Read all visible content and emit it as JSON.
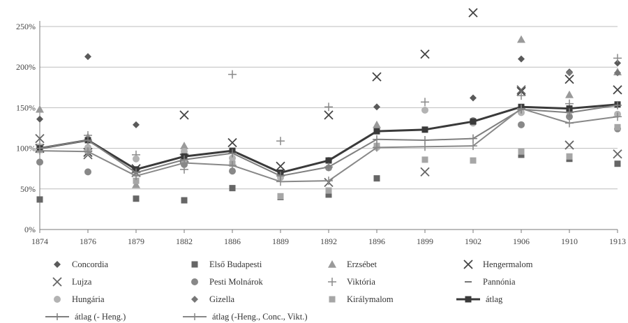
{
  "chart_data": {
    "type": "line",
    "x": [
      "1874",
      "1876",
      "1879",
      "1882",
      "1886",
      "1889",
      "1892",
      "1896",
      "1899",
      "1902",
      "1906",
      "1910",
      "1913"
    ],
    "ylim": [
      0,
      2.5
    ],
    "yticks": [
      "0%",
      "50%",
      "100%",
      "150%",
      "200%",
      "250%"
    ],
    "grid": true,
    "legend_position": "bottom",
    "series": [
      {
        "name": "Concordia",
        "kind": "marker",
        "marker": "diamond",
        "color": "#5a5a5a",
        "values": [
          1.36,
          2.13,
          1.29,
          null,
          null,
          null,
          null,
          1.51,
          null,
          1.62,
          2.1,
          1.94,
          2.05
        ]
      },
      {
        "name": "Első Budapesti",
        "kind": "marker",
        "marker": "square",
        "color": "#666666",
        "values": [
          0.37,
          null,
          0.38,
          0.36,
          0.51,
          0.4,
          0.43,
          0.63,
          null,
          null,
          0.92,
          0.87,
          0.81
        ]
      },
      {
        "name": "Erzsébet",
        "kind": "marker",
        "marker": "triangle",
        "color": "#9a9a9a",
        "values": [
          1.48,
          1.14,
          0.55,
          1.03,
          null,
          null,
          null,
          1.29,
          null,
          null,
          2.34,
          1.66,
          1.94
        ]
      },
      {
        "name": "Hengermalom",
        "kind": "marker",
        "marker": "x",
        "color": "#444444",
        "values": [
          1.0,
          0.95,
          0.75,
          1.41,
          1.07,
          0.78,
          1.41,
          1.88,
          2.16,
          2.67,
          1.7,
          1.85,
          1.72
        ]
      },
      {
        "name": "Lujza",
        "kind": "marker",
        "marker": "x",
        "color": "#666666",
        "values": [
          1.12,
          0.92,
          0.7,
          0.88,
          null,
          null,
          0.58,
          null,
          0.71,
          null,
          1.72,
          1.04,
          0.93
        ]
      },
      {
        "name": "Pesti Molnárok",
        "kind": "marker",
        "marker": "circle",
        "color": "#888888",
        "values": [
          0.83,
          0.71,
          null,
          0.8,
          0.72,
          null,
          0.76,
          null,
          null,
          1.34,
          1.29,
          1.39,
          1.24
        ]
      },
      {
        "name": "Viktória",
        "kind": "marker",
        "marker": "plus",
        "color": "#8a8a8a",
        "values": [
          1.05,
          1.16,
          0.92,
          0.74,
          1.91,
          1.09,
          1.51,
          null,
          1.57,
          null,
          1.65,
          1.55,
          2.11
        ]
      },
      {
        "name": "Pannónia",
        "kind": "marker",
        "marker": "dash",
        "color": "#666666",
        "values": [
          null,
          null,
          null,
          null,
          null,
          null,
          null,
          null,
          null,
          null,
          null,
          null,
          null
        ]
      },
      {
        "name": "Hungária",
        "kind": "marker",
        "marker": "circle",
        "color": "#b3b3b3",
        "values": [
          1.02,
          1.01,
          0.87,
          0.96,
          0.88,
          0.64,
          0.85,
          1.01,
          1.47,
          1.31,
          1.44,
          1.46,
          1.42
        ]
      },
      {
        "name": "Gizella",
        "kind": "marker",
        "marker": "diamond",
        "color": "#777777",
        "values": [
          null,
          null,
          null,
          null,
          null,
          null,
          null,
          null,
          null,
          null,
          null,
          1.93,
          1.93
        ]
      },
      {
        "name": "Királymalom",
        "kind": "marker",
        "marker": "square",
        "color": "#a6a6a6",
        "values": [
          0.98,
          0.97,
          0.6,
          0.86,
          0.81,
          0.41,
          0.48,
          1.03,
          0.86,
          0.85,
          0.96,
          0.9,
          1.26
        ]
      },
      {
        "name": "átlag",
        "kind": "line",
        "marker": "square",
        "color": "#3a3a3a",
        "width": 3,
        "values": [
          1.0,
          1.1,
          0.74,
          0.9,
          0.97,
          0.7,
          0.85,
          1.21,
          1.23,
          1.33,
          1.51,
          1.49,
          1.54
        ]
      },
      {
        "name": "átlag (- Heng.)",
        "kind": "line",
        "marker": "plus",
        "color": "#7f7f7f",
        "width": 2,
        "values": [
          1.0,
          1.1,
          0.7,
          0.86,
          0.94,
          0.66,
          0.77,
          1.11,
          1.1,
          1.12,
          1.48,
          1.44,
          1.53
        ]
      },
      {
        "name": "átlag (-Heng., Conc., Vikt.)",
        "kind": "line",
        "marker": "plus",
        "color": "#888888",
        "width": 2,
        "values": [
          0.97,
          0.96,
          0.66,
          0.82,
          0.79,
          0.59,
          0.6,
          1.01,
          1.02,
          1.03,
          1.49,
          1.31,
          1.39
        ]
      }
    ]
  }
}
